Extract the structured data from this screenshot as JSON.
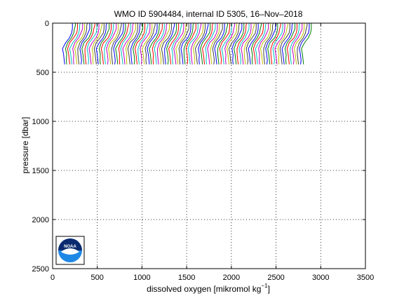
{
  "chart_data": {
    "type": "line",
    "title": "WMO ID 5904484, internal ID 5305, 16–Nov–2018",
    "xlabel_main": "dissolved oxygen [mikromol kg",
    "xlabel_sup": "−1",
    "xlabel_end": "]",
    "ylabel": "pressure [dbar]",
    "xlim": [
      0,
      3500
    ],
    "ylim": [
      0,
      2500
    ],
    "y_reversed": true,
    "grid": true,
    "x_ticks": [
      0,
      500,
      1000,
      1500,
      2000,
      2500,
      3000,
      3500
    ],
    "x_tick_labels": [
      "0",
      "500",
      "1000",
      "1500",
      "2000",
      "2500",
      "3000",
      "3500"
    ],
    "y_ticks": [
      0,
      500,
      1000,
      1500,
      2000,
      2500
    ],
    "y_tick_labels": [
      "0",
      "500",
      "1000",
      "1500",
      "2000",
      "2500"
    ],
    "profile_shape": {
      "pressure": [
        0,
        20,
        60,
        100,
        150,
        200,
        260,
        320,
        380,
        420
      ],
      "oxygen": [
        225,
        225,
        222,
        212,
        185,
        140,
        115,
        125,
        130,
        133
      ]
    },
    "profile_count": 100,
    "profile_offset_step": 27,
    "profile_offset_unit": "mikromol kg-1",
    "series_colors": [
      "#0000ff",
      "#008000",
      "#ff0000",
      "#00bfbf",
      "#bf00bf",
      "#bfbf00",
      "#404040"
    ],
    "logo": {
      "name": "noaa-logo",
      "text": "NOAA"
    }
  }
}
